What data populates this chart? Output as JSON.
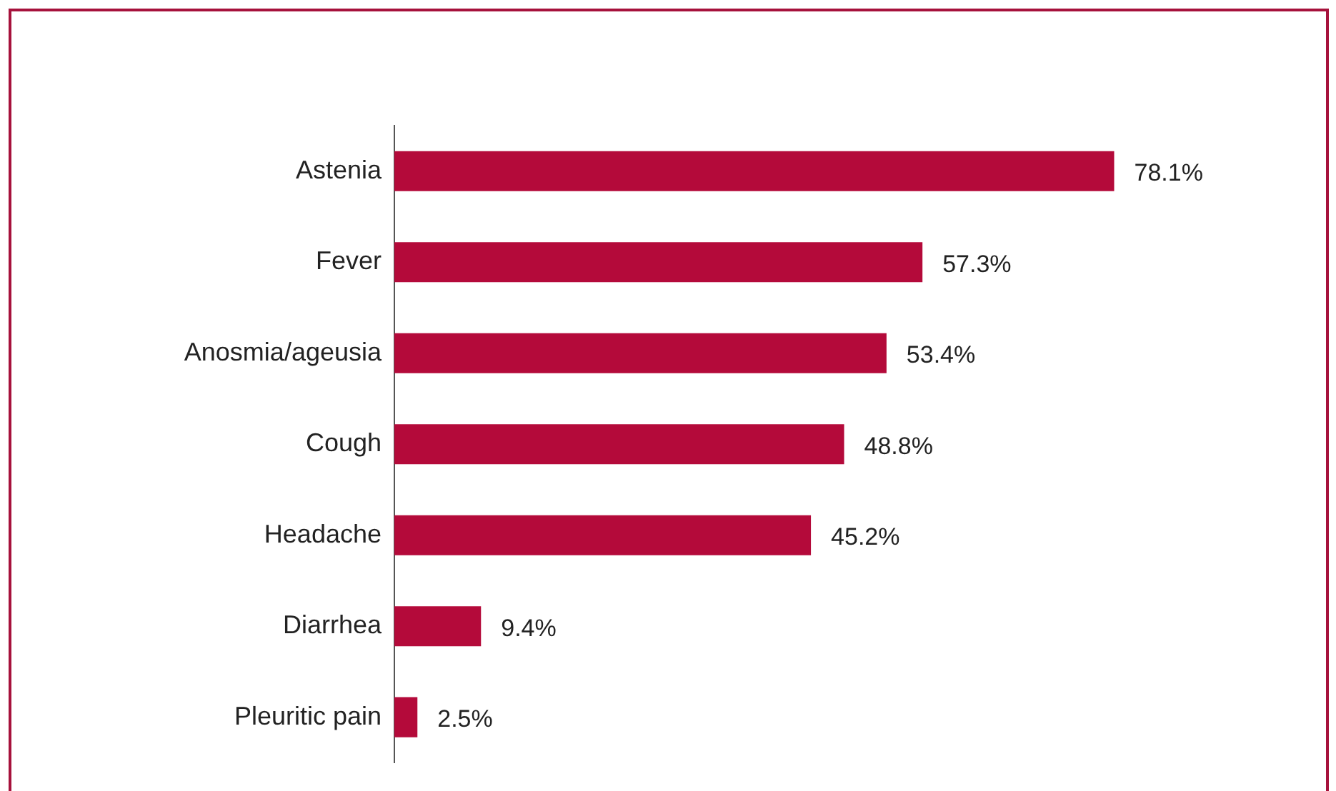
{
  "chart_data": {
    "type": "bar",
    "orientation": "horizontal",
    "categories": [
      "Astenia",
      "Fever",
      "Anosmia/ageusia",
      "Cough",
      "Headache",
      "Diarrhea",
      "Pleuritic pain"
    ],
    "values": [
      78.1,
      57.3,
      53.4,
      48.8,
      45.2,
      9.4,
      2.5
    ],
    "value_labels": [
      "78.1%",
      "57.3%",
      "53.4%",
      "48.8%",
      "45.2%",
      "9.4%",
      "2.5%"
    ],
    "color": "#b40a3a",
    "legend": false,
    "tick_labels": "y"
  }
}
